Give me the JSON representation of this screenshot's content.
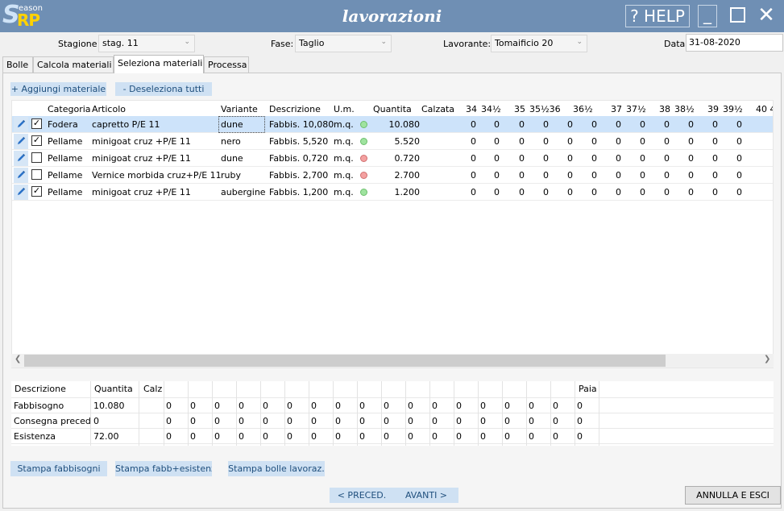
{
  "app": {
    "logo_letter": "S",
    "logo_sub": "eason",
    "logo_rp": "RP",
    "title": "lavorazioni",
    "help_label": "? HELP",
    "minimize_label": "_",
    "close_label": "✕"
  },
  "filters": {
    "stagione_label": "Stagione",
    "stagione_value": "stag. 11",
    "fase_label": "Fase:",
    "fase_value": "Taglio",
    "lavorante_label": "Lavorante:",
    "lavorante_value": "Tomaificio 20",
    "data_label": "Data",
    "data_value": "31-08-2020"
  },
  "tabs": [
    "Bolle",
    "Calcola materiali",
    "Seleziona materiali",
    "Processa"
  ],
  "toolbar": {
    "add_label": "+ Aggiungi materiale",
    "deselect_label": "- Deseleziona tutti"
  },
  "grid": {
    "columns": {
      "categoria": "Categoria",
      "articolo": "Articolo",
      "variante": "Variante",
      "descrizione": "Descrizione",
      "um": "U.m.",
      "quantita": "Quantita",
      "calzata": "Calzata"
    },
    "sizes": [
      "34",
      "34½",
      "35",
      "35½36",
      "36½",
      "37",
      "37½",
      "38",
      "38½",
      "39",
      "39½",
      "40 4"
    ],
    "rows": [
      {
        "checked": true,
        "categoria": "Fodera",
        "articolo": "capretto P/E 11",
        "variante": "dune",
        "descrizione": "Fabbis. 10,080",
        "um": "m.q.",
        "status": "ok",
        "quantita": "10.080",
        "sizes": [
          "0",
          "0",
          "0",
          "0",
          "0",
          "0",
          "0",
          "0",
          "0",
          "0",
          "0",
          "0"
        ]
      },
      {
        "checked": true,
        "categoria": "Pellame",
        "articolo": "minigoat cruz +P/E 11",
        "variante": "nero",
        "descrizione": "Fabbis. 5,520",
        "um": "m.q.",
        "status": "ok",
        "quantita": "5.520",
        "sizes": [
          "0",
          "0",
          "0",
          "0",
          "0",
          "0",
          "0",
          "0",
          "0",
          "0",
          "0",
          "0"
        ]
      },
      {
        "checked": false,
        "categoria": "Pellame",
        "articolo": "minigoat cruz +P/E 11",
        "variante": "dune",
        "descrizione": "Fabbis. 0,720",
        "um": "m.q.",
        "status": "ko",
        "quantita": "0.720",
        "sizes": [
          "0",
          "0",
          "0",
          "0",
          "0",
          "0",
          "0",
          "0",
          "0",
          "0",
          "0",
          "0"
        ]
      },
      {
        "checked": false,
        "categoria": "Pellame",
        "articolo": "Vernice morbida cruz+P/E 11",
        "variante": "ruby",
        "descrizione": "Fabbis. 2,700",
        "um": "m.q.",
        "status": "ko",
        "quantita": "2.700",
        "sizes": [
          "0",
          "0",
          "0",
          "0",
          "0",
          "0",
          "0",
          "0",
          "0",
          "0",
          "0",
          "0"
        ]
      },
      {
        "checked": true,
        "categoria": "Pellame",
        "articolo": "minigoat cruz +P/E 11",
        "variante": "aubergine",
        "descrizione": "Fabbis. 1,200",
        "um": "m.q.",
        "status": "ok",
        "quantita": "1.200",
        "sizes": [
          "0",
          "0",
          "0",
          "0",
          "0",
          "0",
          "0",
          "0",
          "0",
          "0",
          "0",
          "0"
        ]
      }
    ]
  },
  "summary": {
    "columns": {
      "descrizione": "Descrizione",
      "quantita": "Quantita",
      "calzata": "Calz",
      "paia": "Paia"
    },
    "rows": [
      {
        "label": "Fabbisogno",
        "quantita": "10.080",
        "values": [
          "0",
          "0",
          "0",
          "0",
          "0",
          "0",
          "0",
          "0",
          "0",
          "0",
          "0",
          "0",
          "0",
          "0",
          "0",
          "0",
          "0"
        ],
        "paia": "0"
      },
      {
        "label": "Consegna preced",
        "quantita": "0",
        "values": [
          "0",
          "0",
          "0",
          "0",
          "0",
          "0",
          "0",
          "0",
          "0",
          "0",
          "0",
          "0",
          "0",
          "0",
          "0",
          "0",
          "0"
        ],
        "paia": "0"
      },
      {
        "label": "Esistenza",
        "quantita": "72.00",
        "values": [
          "0",
          "0",
          "0",
          "0",
          "0",
          "0",
          "0",
          "0",
          "0",
          "0",
          "0",
          "0",
          "0",
          "0",
          "0",
          "0",
          "0"
        ],
        "paia": "0"
      }
    ]
  },
  "actions": {
    "stampa_fabbisogni": "Stampa fabbisogni",
    "stampa_fabb_esistenza": "Stampa fabb+esistenz",
    "stampa_bolle": "Stampa bolle lavoraz.",
    "preced": "< PRECED.",
    "avanti": "AVANTI >",
    "annulla": "ANNULLA E ESCI"
  },
  "colors": {
    "titlebar": "#6f8fb4",
    "selected_row": "#cde3fa",
    "button_bg": "#cfe1f3",
    "status_ok": "#9fe39f",
    "status_ko": "#f4a1a1"
  }
}
